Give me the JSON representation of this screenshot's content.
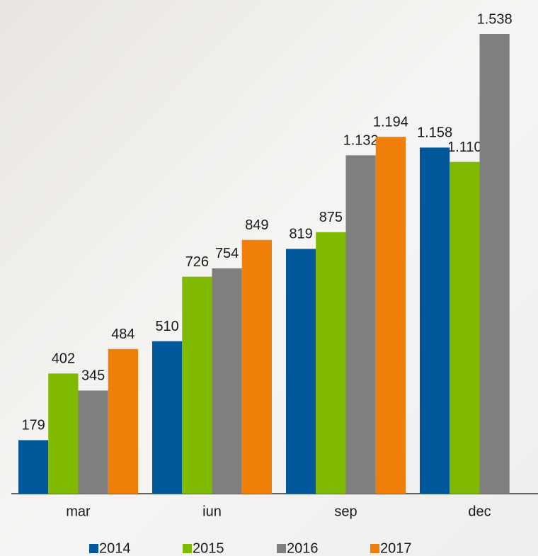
{
  "chart_data": {
    "type": "bar",
    "categories": [
      "mar",
      "iun",
      "sep",
      "dec"
    ],
    "series": [
      {
        "name": "2014",
        "color": "#00589a",
        "values": [
          179,
          510,
          819,
          1158
        ],
        "value_labels": [
          "179",
          "510",
          "819",
          "1.158"
        ]
      },
      {
        "name": "2015",
        "color": "#7fba00",
        "values": [
          402,
          726,
          875,
          1110
        ],
        "value_labels": [
          "402",
          "726",
          "875",
          "1.110"
        ]
      },
      {
        "name": "2016",
        "color": "#7f7f7f",
        "values": [
          345,
          754,
          1132,
          1538
        ],
        "value_labels": [
          "345",
          "754",
          "1.132",
          "1.538"
        ]
      },
      {
        "name": "2017",
        "color": "#f07f09",
        "values": [
          484,
          849,
          1194,
          null
        ],
        "value_labels": [
          "484",
          "849",
          "1.194",
          null
        ]
      }
    ],
    "legend": "bottom"
  }
}
